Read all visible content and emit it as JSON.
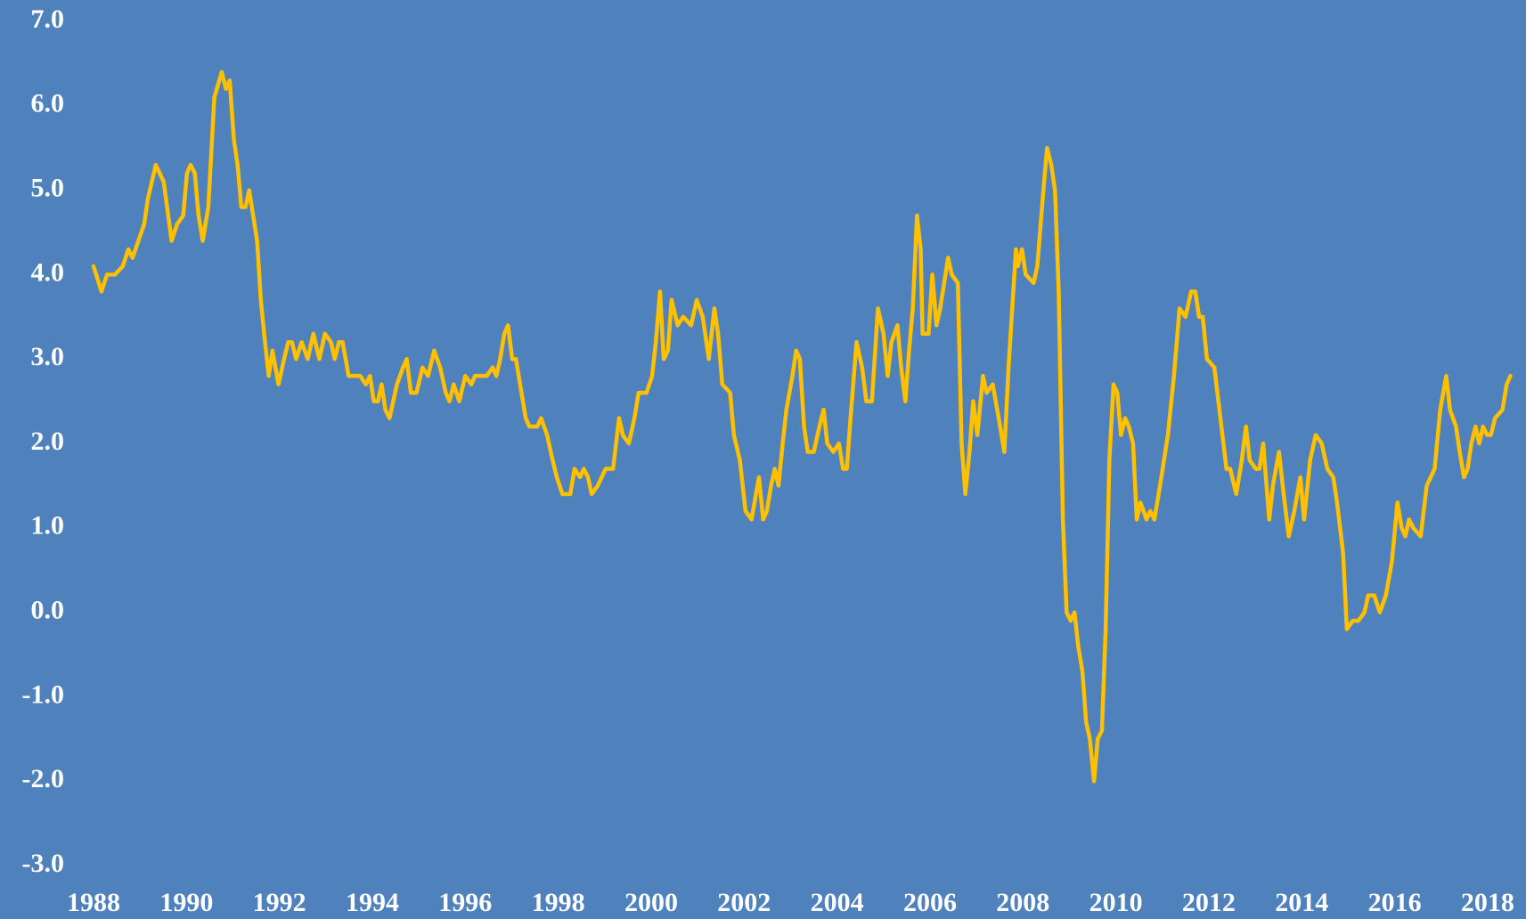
{
  "chart_data": {
    "type": "line",
    "x": [
      1988.0,
      1988.17,
      1988.29,
      1988.46,
      1988.63,
      1988.75,
      1988.84,
      1989.09,
      1989.17,
      1989.34,
      1989.51,
      1989.68,
      1989.8,
      1989.93,
      1990.01,
      1990.09,
      1990.18,
      1990.26,
      1990.35,
      1990.47,
      1990.6,
      1990.76,
      1990.85,
      1990.93,
      1991.02,
      1991.1,
      1991.18,
      1991.27,
      1991.35,
      1991.52,
      1991.6,
      1991.69,
      1991.77,
      1991.85,
      1991.98,
      1992.1,
      1992.19,
      1992.27,
      1992.36,
      1992.48,
      1992.61,
      1992.73,
      1992.86,
      1992.98,
      1993.11,
      1993.19,
      1993.28,
      1993.36,
      1993.49,
      1993.74,
      1993.86,
      1993.95,
      1994.03,
      1994.12,
      1994.2,
      1994.28,
      1994.37,
      1994.53,
      1994.66,
      1994.74,
      1994.83,
      1994.95,
      1995.08,
      1995.2,
      1995.33,
      1995.46,
      1995.58,
      1995.66,
      1995.75,
      1995.87,
      1996.0,
      1996.13,
      1996.21,
      1996.46,
      1996.59,
      1996.67,
      1996.75,
      1996.84,
      1996.92,
      1997.01,
      1997.09,
      1997.21,
      1997.3,
      1997.38,
      1997.55,
      1997.63,
      1997.76,
      1997.88,
      1997.97,
      1998.09,
      1998.26,
      1998.35,
      1998.47,
      1998.55,
      1998.64,
      1998.72,
      1998.85,
      1999.02,
      1999.18,
      1999.31,
      1999.39,
      1999.52,
      1999.64,
      1999.73,
      1999.9,
      2000.02,
      2000.1,
      2000.19,
      2000.27,
      2000.36,
      2000.44,
      2000.57,
      2000.69,
      2000.86,
      2000.98,
      2001.11,
      2001.24,
      2001.36,
      2001.44,
      2001.53,
      2001.7,
      2001.78,
      2001.91,
      2002.03,
      2002.16,
      2002.32,
      2002.41,
      2002.49,
      2002.58,
      2002.66,
      2002.74,
      2002.83,
      2002.91,
      2003.04,
      2003.12,
      2003.2,
      2003.29,
      2003.37,
      2003.5,
      2003.62,
      2003.71,
      2003.79,
      2003.92,
      2004.04,
      2004.13,
      2004.21,
      2004.29,
      2004.42,
      2004.54,
      2004.63,
      2004.75,
      2004.88,
      2005.0,
      2005.09,
      2005.17,
      2005.3,
      2005.38,
      2005.47,
      2005.55,
      2005.63,
      2005.72,
      2005.8,
      2005.84,
      2005.97,
      2006.05,
      2006.14,
      2006.22,
      2006.39,
      2006.47,
      2006.6,
      2006.68,
      2006.76,
      2006.85,
      2006.93,
      2007.02,
      2007.14,
      2007.22,
      2007.35,
      2007.48,
      2007.6,
      2007.69,
      2007.85,
      2007.89,
      2007.98,
      2008.06,
      2008.23,
      2008.31,
      2008.44,
      2008.52,
      2008.61,
      2008.69,
      2008.77,
      2008.86,
      2008.94,
      2009.03,
      2009.11,
      2009.19,
      2009.28,
      2009.36,
      2009.44,
      2009.53,
      2009.61,
      2009.7,
      2009.78,
      2009.86,
      2009.95,
      2010.03,
      2010.11,
      2010.2,
      2010.28,
      2010.37,
      2010.45,
      2010.53,
      2010.66,
      2010.74,
      2010.83,
      2010.95,
      2011.12,
      2011.25,
      2011.37,
      2011.5,
      2011.62,
      2011.71,
      2011.79,
      2011.87,
      2011.96,
      2012.12,
      2012.25,
      2012.38,
      2012.46,
      2012.59,
      2012.71,
      2012.8,
      2012.88,
      2013.01,
      2013.09,
      2013.17,
      2013.3,
      2013.38,
      2013.51,
      2013.59,
      2013.72,
      2013.84,
      2013.97,
      2014.05,
      2014.18,
      2014.3,
      2014.43,
      2014.55,
      2014.68,
      2014.76,
      2014.89,
      2014.97,
      2015.1,
      2015.22,
      2015.35,
      2015.43,
      2015.56,
      2015.68,
      2015.81,
      2015.94,
      2016.06,
      2016.15,
      2016.23,
      2016.31,
      2016.4,
      2016.56,
      2016.69,
      2016.86,
      2016.98,
      2017.11,
      2017.19,
      2017.32,
      2017.4,
      2017.49,
      2017.57,
      2017.65,
      2017.74,
      2017.82,
      2017.9,
      2017.99,
      2018.07,
      2018.16,
      2018.32,
      2018.41,
      2018.49
    ],
    "values": [
      4.1,
      3.8,
      4.0,
      4.0,
      4.1,
      4.3,
      4.2,
      4.6,
      4.9,
      5.3,
      5.1,
      4.4,
      4.6,
      4.7,
      5.2,
      5.3,
      5.2,
      4.7,
      4.4,
      4.8,
      6.1,
      6.4,
      6.2,
      6.3,
      5.6,
      5.3,
      4.8,
      4.8,
      5.0,
      4.4,
      3.7,
      3.2,
      2.8,
      3.1,
      2.7,
      3.0,
      3.2,
      3.2,
      3.0,
      3.2,
      3.0,
      3.3,
      3.0,
      3.3,
      3.2,
      3.0,
      3.2,
      3.2,
      2.8,
      2.8,
      2.7,
      2.8,
      2.5,
      2.5,
      2.7,
      2.4,
      2.3,
      2.7,
      2.9,
      3.0,
      2.6,
      2.6,
      2.9,
      2.8,
      3.1,
      2.9,
      2.6,
      2.5,
      2.7,
      2.5,
      2.8,
      2.7,
      2.8,
      2.8,
      2.9,
      2.8,
      3.0,
      3.3,
      3.4,
      3.0,
      3.0,
      2.6,
      2.3,
      2.2,
      2.2,
      2.3,
      2.1,
      1.8,
      1.6,
      1.4,
      1.4,
      1.7,
      1.6,
      1.7,
      1.6,
      1.4,
      1.5,
      1.7,
      1.7,
      2.3,
      2.1,
      2.0,
      2.3,
      2.6,
      2.6,
      2.8,
      3.2,
      3.8,
      3.0,
      3.1,
      3.7,
      3.4,
      3.5,
      3.4,
      3.7,
      3.5,
      3.0,
      3.6,
      3.3,
      2.7,
      2.6,
      2.1,
      1.8,
      1.2,
      1.1,
      1.6,
      1.1,
      1.2,
      1.5,
      1.7,
      1.5,
      2.0,
      2.4,
      2.8,
      3.1,
      3.0,
      2.2,
      1.9,
      1.9,
      2.2,
      2.4,
      2.0,
      1.9,
      2.0,
      1.7,
      1.7,
      2.3,
      3.2,
      2.9,
      2.5,
      2.5,
      3.6,
      3.3,
      2.8,
      3.2,
      3.4,
      2.9,
      2.5,
      3.1,
      3.6,
      4.7,
      4.3,
      3.3,
      3.3,
      4.0,
      3.4,
      3.6,
      4.2,
      4.0,
      3.9,
      2.0,
      1.4,
      1.9,
      2.5,
      2.1,
      2.8,
      2.6,
      2.7,
      2.3,
      1.9,
      2.9,
      4.3,
      4.1,
      4.3,
      4.0,
      3.9,
      4.1,
      5.0,
      5.5,
      5.3,
      5.0,
      3.8,
      1.1,
      0.0,
      -0.1,
      0.0,
      -0.4,
      -0.7,
      -1.3,
      -1.5,
      -2.0,
      -1.5,
      -1.4,
      -0.2,
      1.8,
      2.7,
      2.6,
      2.1,
      2.3,
      2.2,
      2.0,
      1.1,
      1.3,
      1.1,
      1.2,
      1.1,
      1.5,
      2.1,
      2.8,
      3.6,
      3.5,
      3.8,
      3.8,
      3.5,
      3.5,
      3.0,
      2.9,
      2.3,
      1.7,
      1.7,
      1.4,
      1.8,
      2.2,
      1.8,
      1.7,
      1.7,
      2.0,
      1.1,
      1.5,
      1.9,
      1.5,
      0.9,
      1.2,
      1.6,
      1.1,
      1.8,
      2.1,
      2.0,
      1.7,
      1.6,
      1.3,
      0.7,
      -0.2,
      -0.1,
      -0.1,
      0.0,
      0.2,
      0.2,
      0.0,
      0.2,
      0.6,
      1.3,
      1.0,
      0.9,
      1.1,
      1.0,
      0.9,
      1.5,
      1.7,
      2.4,
      2.8,
      2.4,
      2.2,
      1.9,
      1.6,
      1.7,
      2.0,
      2.2,
      2.0,
      2.2,
      2.1,
      2.1,
      2.3,
      2.4,
      2.7,
      2.8
    ],
    "color": "#ffc000",
    "xlim": [
      1988,
      2018.5
    ],
    "xticks": [
      1988,
      1990,
      1992,
      1994,
      1996,
      1998,
      2000,
      2002,
      2004,
      2006,
      2008,
      2010,
      2012,
      2014,
      2016,
      2018
    ],
    "ylim": [
      -3,
      7
    ],
    "yticks": [
      {
        "value": -3,
        "label": "-3.0"
      },
      {
        "value": -2,
        "label": "-2.0"
      },
      {
        "value": -1,
        "label": "-1.0"
      },
      {
        "value": 0,
        "label": "0.0"
      },
      {
        "value": 1,
        "label": "1.0"
      },
      {
        "value": 2,
        "label": "2.0"
      },
      {
        "value": 3,
        "label": "3.0"
      },
      {
        "value": 4,
        "label": "4.0"
      },
      {
        "value": 5,
        "label": "5.0"
      },
      {
        "value": 6,
        "label": "6.0"
      },
      {
        "value": 7,
        "label": "7.0"
      }
    ],
    "grid": false
  }
}
